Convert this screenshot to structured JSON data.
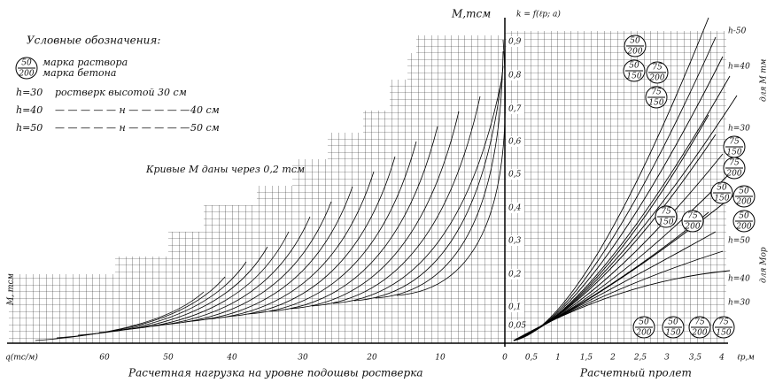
{
  "legend": {
    "title": "Условные обозначения:",
    "badge_top": "50",
    "badge_bottom": "200",
    "badge_top_text": "марка раствора",
    "badge_bottom_text": "марка бетона",
    "rows": [
      {
        "key": "h=30",
        "text": "ростверк высотой 30 см"
      },
      {
        "key": "h=40",
        "mid": "— — — — — н — — — — —",
        "text": "40 см"
      },
      {
        "key": "h=50",
        "mid": "— — — — — н — — — — —",
        "text": "50 см"
      }
    ]
  },
  "curves_note": "Кривые M даны через 0,2 тсм",
  "m_axis_title": "M,тсм",
  "k_axis_title": "k = f(ℓр; a)",
  "left_axis_title": "M, тсм",
  "k_ticks": [
    "0,9",
    "0,8",
    "0,7",
    "0,6",
    "0,5",
    "0,4",
    "0,3",
    "0,2",
    "0,1",
    "0,05"
  ],
  "q_axis_title": "q(тс/м)",
  "q_ticks": [
    "60",
    "50",
    "40",
    "30",
    "20",
    "10",
    "0"
  ],
  "l_ticks": [
    "0,5",
    "1",
    "1,5",
    "2",
    "2,5",
    "3",
    "3,5",
    "4"
  ],
  "l_axis_title": "ℓр,м",
  "bottom_left_caption": "Расчетная нагрузка на уровне подошвы ростверка",
  "bottom_right_caption": "Расчетный пролет",
  "h_labels": [
    "h-50",
    "h=40",
    "h=30",
    "h=50",
    "h=40",
    "h=30"
  ],
  "side_labels": [
    "для M тм",
    "для Mор"
  ],
  "badges": [
    {
      "top": "50",
      "bottom": "200"
    },
    {
      "top": "50",
      "bottom": "150"
    },
    {
      "top": "75",
      "bottom": "200"
    },
    {
      "top": "75",
      "bottom": "150"
    },
    {
      "top": "75",
      "bottom": "150"
    },
    {
      "top": "75",
      "bottom": "200"
    },
    {
      "top": "50",
      "bottom": "150"
    },
    {
      "top": "50",
      "bottom": "200"
    },
    {
      "top": "75",
      "bottom": "150"
    },
    {
      "top": "75",
      "bottom": "200"
    },
    {
      "top": "50",
      "bottom": "200"
    },
    {
      "top": "50",
      "bottom": "200"
    },
    {
      "top": "50",
      "bottom": "150"
    },
    {
      "top": "75",
      "bottom": "200"
    },
    {
      "top": "75",
      "bottom": "150"
    }
  ]
}
